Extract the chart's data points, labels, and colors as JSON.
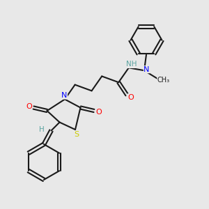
{
  "background_color": "#e8e8e8",
  "bond_color": "#1a1a1a",
  "N_color": "#0000ff",
  "O_color": "#ff0000",
  "S_color": "#cccc00",
  "H_color": "#5ba3a0",
  "NH_color": "#5ba3a0",
  "lw": 1.5,
  "xlim": [
    0,
    1
  ],
  "ylim": [
    0,
    1
  ]
}
